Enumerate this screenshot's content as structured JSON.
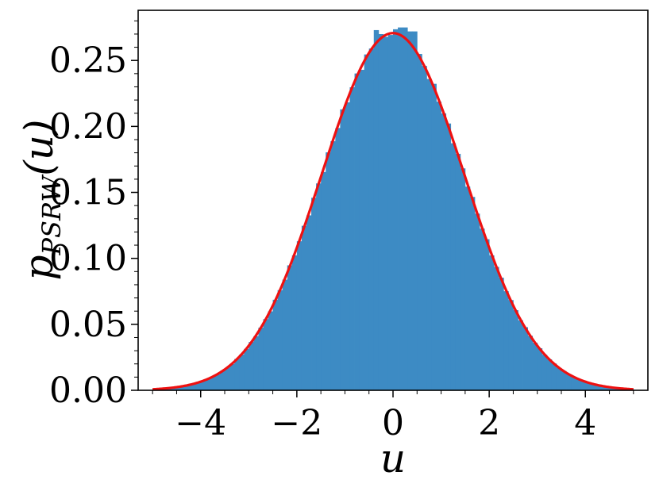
{
  "chart_data": {
    "type": "bar",
    "title": "",
    "xlabel": "u",
    "ylabel_main": "p",
    "ylabel_sub": "PSRW",
    "ylabel_arg": "(u)",
    "xlim": [
      -5.3,
      5.3
    ],
    "ylim": [
      0,
      0.288
    ],
    "x_ticks": [
      -4,
      -2,
      0,
      2,
      4
    ],
    "x_tick_labels": [
      "−4",
      "−2",
      "0",
      "2",
      "4"
    ],
    "y_ticks": [
      0.0,
      0.05,
      0.1,
      0.15,
      0.2,
      0.25
    ],
    "y_tick_labels": [
      "0.00",
      "0.05",
      "0.10",
      "0.15",
      "0.20",
      "0.25"
    ],
    "series": [
      {
        "kind": "histogram",
        "color": "#3d8bc4",
        "bin_range": [
          -5.0,
          5.0
        ],
        "bin_count": 100,
        "peak_bins": [
          {
            "x": -0.35,
            "value": 0.273
          },
          {
            "x": 0.2,
            "value": 0.275
          },
          {
            "x": 0.4,
            "value": 0.272
          }
        ]
      },
      {
        "kind": "line",
        "color": "#ee1111",
        "mixture_means": [
          -0.5,
          0.5
        ],
        "mixture_sigma": 1.38,
        "x": [
          -5.0,
          -4.5,
          -4.0,
          -3.5,
          -3.0,
          -2.5,
          -2.0,
          -1.5,
          -1.0,
          -0.5,
          -0.3,
          0.0,
          0.3,
          0.5,
          1.0,
          1.5,
          2.0,
          2.5,
          3.0,
          3.5,
          4.0,
          4.5,
          5.0
        ],
        "y": [
          0.0005,
          0.002,
          0.006,
          0.017,
          0.039,
          0.074,
          0.12,
          0.177,
          0.234,
          0.267,
          0.268,
          0.26,
          0.268,
          0.267,
          0.234,
          0.177,
          0.12,
          0.074,
          0.039,
          0.017,
          0.006,
          0.002,
          0.0005
        ]
      }
    ],
    "grid": false,
    "legend": "none"
  }
}
